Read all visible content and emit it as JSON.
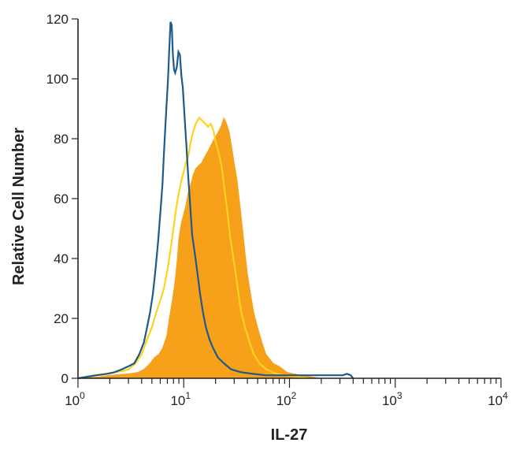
{
  "chart_data": {
    "type": "area",
    "xlabel": "IL-27",
    "ylabel": "Relative Cell Number",
    "xscale": "log",
    "xlim": [
      1,
      10000
    ],
    "ylim": [
      0,
      120
    ],
    "x_ticks": [
      {
        "value": 1,
        "base": "10",
        "exp": "0"
      },
      {
        "value": 10,
        "base": "10",
        "exp": "1"
      },
      {
        "value": 100,
        "base": "10",
        "exp": "2"
      },
      {
        "value": 1000,
        "base": "10",
        "exp": "3"
      },
      {
        "value": 10000,
        "base": "10",
        "exp": "4"
      }
    ],
    "y_ticks": [
      {
        "value": 0,
        "label": "0"
      },
      {
        "value": 20,
        "label": "20"
      },
      {
        "value": 40,
        "label": "40"
      },
      {
        "value": 60,
        "label": "60"
      },
      {
        "value": 80,
        "label": "80"
      },
      {
        "value": 100,
        "label": "100"
      },
      {
        "value": 120,
        "label": "120"
      }
    ],
    "grid": false,
    "series": [
      {
        "style": "filled",
        "color": "#F7A11A",
        "points": [
          [
            1.0,
            0
          ],
          [
            1.6,
            0.5
          ],
          [
            2.0,
            1
          ],
          [
            3.0,
            1.5
          ],
          [
            3.7,
            2
          ],
          [
            4.2,
            3
          ],
          [
            4.8,
            5
          ],
          [
            5.3,
            7
          ],
          [
            5.8,
            8
          ],
          [
            6.3,
            10
          ],
          [
            6.9,
            14
          ],
          [
            7.3,
            20
          ],
          [
            7.8,
            26
          ],
          [
            8.3,
            33
          ],
          [
            8.7,
            40
          ],
          [
            9.0,
            47
          ],
          [
            9.5,
            52
          ],
          [
            10.0,
            55
          ],
          [
            10.5,
            58
          ],
          [
            11.0,
            62
          ],
          [
            11.7,
            65
          ],
          [
            12.3,
            68
          ],
          [
            13.0,
            70
          ],
          [
            13.8,
            71
          ],
          [
            14.8,
            72
          ],
          [
            15.8,
            74
          ],
          [
            17.0,
            76
          ],
          [
            18.2,
            78
          ],
          [
            19.5,
            80
          ],
          [
            21.0,
            82
          ],
          [
            22.5,
            84
          ],
          [
            24.0,
            87
          ],
          [
            25.5,
            85
          ],
          [
            27.0,
            82
          ],
          [
            28.5,
            77
          ],
          [
            30.0,
            72
          ],
          [
            32.0,
            66
          ],
          [
            34.0,
            58
          ],
          [
            36.0,
            50
          ],
          [
            38.0,
            42
          ],
          [
            40.0,
            35
          ],
          [
            43.0,
            28
          ],
          [
            46.0,
            22
          ],
          [
            50.0,
            17
          ],
          [
            55.0,
            12
          ],
          [
            60.0,
            8
          ],
          [
            70.0,
            5
          ],
          [
            80.0,
            4
          ],
          [
            95.0,
            2
          ],
          [
            110.0,
            1.5
          ],
          [
            130.0,
            1
          ],
          [
            160.0,
            0.5
          ],
          [
            200.0,
            0
          ]
        ]
      },
      {
        "style": "line",
        "color": "#FFD21F",
        "points": [
          [
            1.0,
            0
          ],
          [
            1.4,
            1
          ],
          [
            1.8,
            1.5
          ],
          [
            2.2,
            2
          ],
          [
            2.7,
            2.5
          ],
          [
            3.0,
            3
          ],
          [
            3.5,
            5
          ],
          [
            4.0,
            8
          ],
          [
            4.5,
            13
          ],
          [
            5.0,
            17
          ],
          [
            5.5,
            22
          ],
          [
            6.0,
            26
          ],
          [
            6.5,
            30
          ],
          [
            7.0,
            36
          ],
          [
            7.5,
            43
          ],
          [
            8.0,
            50
          ],
          [
            8.5,
            57
          ],
          [
            9.0,
            62
          ],
          [
            9.5,
            66
          ],
          [
            10.0,
            69
          ],
          [
            10.5,
            72
          ],
          [
            11.0,
            74
          ],
          [
            11.5,
            78
          ],
          [
            12.2,
            82
          ],
          [
            13.0,
            85
          ],
          [
            14.0,
            87
          ],
          [
            15.0,
            86
          ],
          [
            16.0,
            85
          ],
          [
            17.0,
            84
          ],
          [
            18.0,
            85
          ],
          [
            19.0,
            83
          ],
          [
            20.0,
            79
          ],
          [
            21.5,
            75
          ],
          [
            23.0,
            70
          ],
          [
            24.5,
            62
          ],
          [
            26.0,
            55
          ],
          [
            27.5,
            47
          ],
          [
            29.0,
            42
          ],
          [
            31.0,
            35
          ],
          [
            33.0,
            28
          ],
          [
            35.0,
            22
          ],
          [
            38.0,
            17
          ],
          [
            42.0,
            12
          ],
          [
            46.0,
            8
          ],
          [
            52.0,
            5
          ],
          [
            60.0,
            3
          ],
          [
            75.0,
            1.5
          ],
          [
            90.0,
            1
          ],
          [
            120.0,
            0.5
          ],
          [
            150.0,
            0
          ]
        ]
      },
      {
        "style": "line",
        "color": "#1E5A8A",
        "points": [
          [
            1.0,
            0
          ],
          [
            1.5,
            1
          ],
          [
            1.9,
            1.5
          ],
          [
            2.2,
            2
          ],
          [
            2.6,
            3
          ],
          [
            3.0,
            4
          ],
          [
            3.4,
            5
          ],
          [
            3.8,
            8
          ],
          [
            4.2,
            12
          ],
          [
            4.5,
            17
          ],
          [
            4.8,
            22
          ],
          [
            5.1,
            28
          ],
          [
            5.4,
            36
          ],
          [
            5.7,
            45
          ],
          [
            6.0,
            55
          ],
          [
            6.3,
            65
          ],
          [
            6.5,
            75
          ],
          [
            6.7,
            84
          ],
          [
            6.9,
            92
          ],
          [
            7.1,
            100
          ],
          [
            7.3,
            110
          ],
          [
            7.5,
            119
          ],
          [
            7.7,
            118
          ],
          [
            7.9,
            108
          ],
          [
            8.1,
            103
          ],
          [
            8.3,
            102
          ],
          [
            8.6,
            104
          ],
          [
            8.9,
            109
          ],
          [
            9.2,
            108
          ],
          [
            9.5,
            101
          ],
          [
            9.8,
            97
          ],
          [
            10.2,
            87
          ],
          [
            10.6,
            78
          ],
          [
            11.0,
            68
          ],
          [
            11.5,
            58
          ],
          [
            12.0,
            48
          ],
          [
            12.7,
            42
          ],
          [
            13.5,
            35
          ],
          [
            14.3,
            28
          ],
          [
            15.2,
            22
          ],
          [
            16.2,
            17
          ],
          [
            17.5,
            13
          ],
          [
            19.0,
            10
          ],
          [
            21.0,
            7
          ],
          [
            24.0,
            5
          ],
          [
            28.0,
            3
          ],
          [
            35.0,
            2
          ],
          [
            45.0,
            1.5
          ],
          [
            60.0,
            1
          ],
          [
            100.0,
            1
          ],
          [
            150.0,
            1
          ],
          [
            200.0,
            1
          ],
          [
            260.0,
            1
          ],
          [
            320.0,
            1
          ],
          [
            350.0,
            1.5
          ],
          [
            380.0,
            1
          ],
          [
            400.0,
            0
          ]
        ]
      }
    ]
  }
}
